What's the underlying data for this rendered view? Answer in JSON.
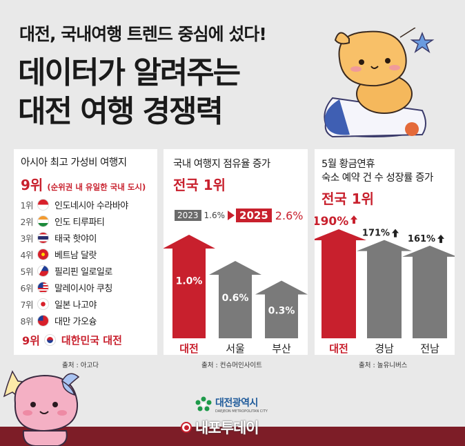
{
  "header": {
    "subtitle": "대전, 국내여행 트렌드 중심에 섰다!",
    "title_line1": "데이터가 알려주는",
    "title_line2": "대전 여행 경쟁력"
  },
  "panel1": {
    "title": "아시아 최고 가성비 여행지",
    "rank_head": "9위",
    "rank_note": "(순위권 내 유일한 국내 도시)",
    "items": [
      {
        "rank": "1위",
        "name": "인도네시아 수라바야",
        "flag": "indonesia-flag-icon"
      },
      {
        "rank": "2위",
        "name": "인도 티루파티",
        "flag": "india-flag-icon"
      },
      {
        "rank": "3위",
        "name": "태국 핫야이",
        "flag": "thailand-flag-icon"
      },
      {
        "rank": "4위",
        "name": "베트남 달랏",
        "flag": "vietnam-flag-icon"
      },
      {
        "rank": "5위",
        "name": "필리핀 일로일로",
        "flag": "philippines-flag-icon"
      },
      {
        "rank": "6위",
        "name": "말레이시아 쿠칭",
        "flag": "malaysia-flag-icon"
      },
      {
        "rank": "7위",
        "name": "일본 나고야",
        "flag": "japan-flag-icon"
      },
      {
        "rank": "8위",
        "name": "대만 가오슝",
        "flag": "taiwan-flag-icon"
      }
    ],
    "highlight_rank": "9위",
    "highlight_name": "대한민국 대전",
    "source": "출처 : 아고다"
  },
  "panel2": {
    "title": "국내 여행지 점유율 증가",
    "rank": "전국 1위",
    "year_from": "2023",
    "value_from": "1.6%",
    "year_to": "2025",
    "value_to": "2.6%",
    "source": "출처 : 컨슈머인사이트",
    "chart_data": {
      "type": "bar",
      "categories": [
        "대전",
        "서울",
        "부산"
      ],
      "values": [
        1.0,
        0.6,
        0.3
      ],
      "labels": [
        "1.0%",
        "0.6%",
        "0.3%"
      ],
      "colors": [
        "#c8202d",
        "#7a7a7a",
        "#7a7a7a"
      ]
    }
  },
  "panel3": {
    "title_line1": "5월 황금연휴",
    "title_line2": "숙소 예약 건 수 성장률 증가",
    "rank": "전국 1위",
    "source": "출처 : 놀유니버스",
    "chart_data": {
      "type": "bar",
      "categories": [
        "대전",
        "경남",
        "전남"
      ],
      "values": [
        190,
        171,
        161
      ],
      "labels": [
        "190%",
        "171%",
        "161%"
      ],
      "colors": [
        "#c8202d",
        "#7a7a7a",
        "#7a7a7a"
      ]
    }
  },
  "footer": {
    "org_name": "대전광역시",
    "org_en": "DAEJEON METROPOLITAN CITY",
    "brand": "내포투데이"
  },
  "colors": {
    "accent": "#c8202d",
    "gray_bar": "#7a7a7a",
    "bottom_bar": "#7d1d27"
  }
}
